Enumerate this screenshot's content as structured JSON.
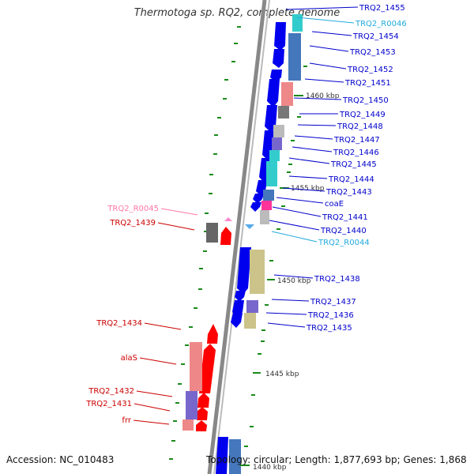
{
  "genome_title": "Thermotoga sp. RQ2, complete genome",
  "accession": "Accession: NC_010483",
  "topology": "Topology: circular; Length: 1,877,693 bp; Genes: 1,868",
  "kbp_labels": [
    "1460 kbp",
    "1455 kbp",
    "1450 kbp",
    "1445 kbp",
    "1440 kbp"
  ],
  "right_labels": [
    {
      "text": "TRQ2_1455",
      "color": "#0000cc"
    },
    {
      "text": "TRQ2_R0046",
      "color": "#22aadd"
    },
    {
      "text": "TRQ2_1454",
      "color": "#0000cc"
    },
    {
      "text": "TRQ2_1453",
      "color": "#0000cc"
    },
    {
      "text": "TRQ2_1452",
      "color": "#0000cc"
    },
    {
      "text": "TRQ2_1451",
      "color": "#0000cc"
    },
    {
      "text": "TRQ2_1450",
      "color": "#0000cc"
    },
    {
      "text": "TRQ2_1449",
      "color": "#0000cc"
    },
    {
      "text": "TRQ2_1448",
      "color": "#0000cc"
    },
    {
      "text": "TRQ2_1447",
      "color": "#0000cc"
    },
    {
      "text": "TRQ2_1446",
      "color": "#0000cc"
    },
    {
      "text": "TRQ2_1445",
      "color": "#0000cc"
    },
    {
      "text": "TRQ2_1444",
      "color": "#0000cc"
    },
    {
      "text": "TRQ2_1443",
      "color": "#0000cc"
    },
    {
      "text": "coaE",
      "color": "#0000cc"
    },
    {
      "text": "TRQ2_1441",
      "color": "#0000cc"
    },
    {
      "text": "TRQ2_1440",
      "color": "#0000cc"
    },
    {
      "text": "TRQ2_R0044",
      "color": "#22aadd"
    },
    {
      "text": "TRQ2_1438",
      "color": "#0000cc"
    },
    {
      "text": "TRQ2_1437",
      "color": "#0000cc"
    },
    {
      "text": "TRQ2_1436",
      "color": "#0000cc"
    },
    {
      "text": "TRQ2_1435",
      "color": "#0000cc"
    }
  ],
  "left_labels": [
    {
      "text": "TRQ2_R0045",
      "color": "#ff77aa"
    },
    {
      "text": "TRQ2_1439",
      "color": "#cc0000"
    },
    {
      "text": "TRQ2_1434",
      "color": "#cc0000"
    },
    {
      "text": "alaS",
      "color": "#cc0000"
    },
    {
      "text": "TRQ2_1432",
      "color": "#cc0000"
    },
    {
      "text": "TRQ2_1431",
      "color": "#cc0000"
    },
    {
      "text": "frr",
      "color": "#cc0000"
    }
  ]
}
